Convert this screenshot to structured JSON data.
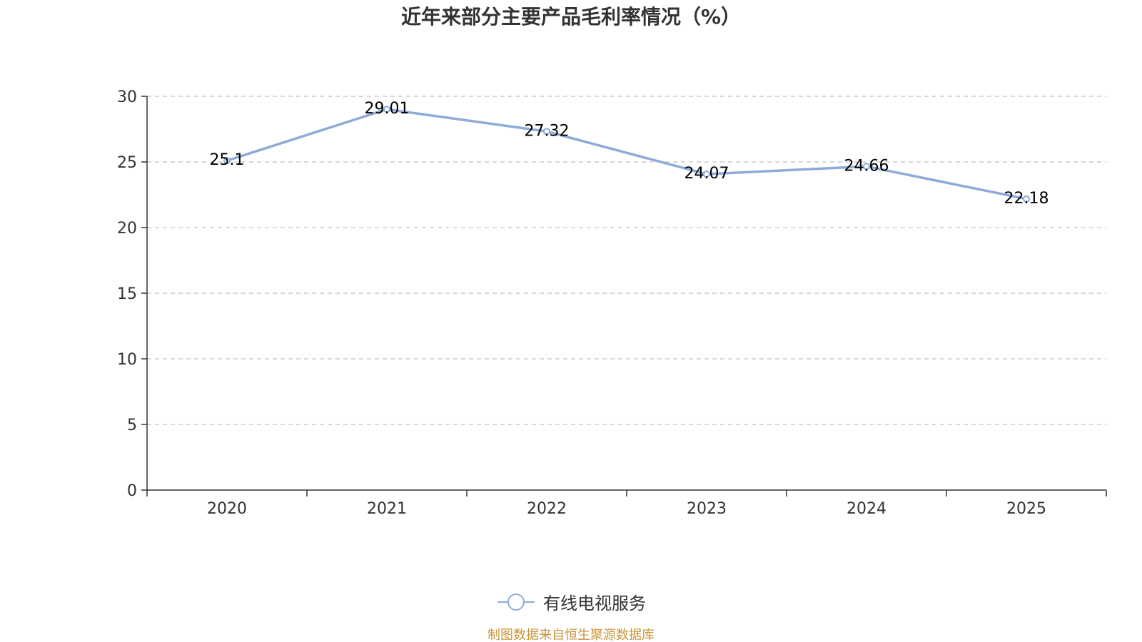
{
  "chart_data": {
    "type": "line",
    "title": "近年来部分主要产品毛利率情况（%）",
    "categories": [
      "2020",
      "2021",
      "2022",
      "2023",
      "2024",
      "2025"
    ],
    "series": [
      {
        "name": "有线电视服务",
        "values": [
          25.1,
          29.01,
          27.32,
          24.07,
          24.66,
          22.18
        ],
        "labels": [
          "25.1",
          "29.01",
          "27.32",
          "24.07",
          "24.66",
          "22.18"
        ],
        "color": "#8eaad8"
      }
    ],
    "xlabel": "",
    "ylabel": "",
    "ylim": [
      0,
      30
    ],
    "yticks": [
      0,
      5,
      10,
      15,
      20,
      25,
      30
    ],
    "grid": true,
    "legend_position": "bottom-center"
  },
  "source_note": "制图数据来自恒生聚源数据库",
  "colors": {
    "series": "#8eaad8",
    "grid": "#cccccc",
    "axis": "#333333",
    "source": "#c8963c"
  }
}
